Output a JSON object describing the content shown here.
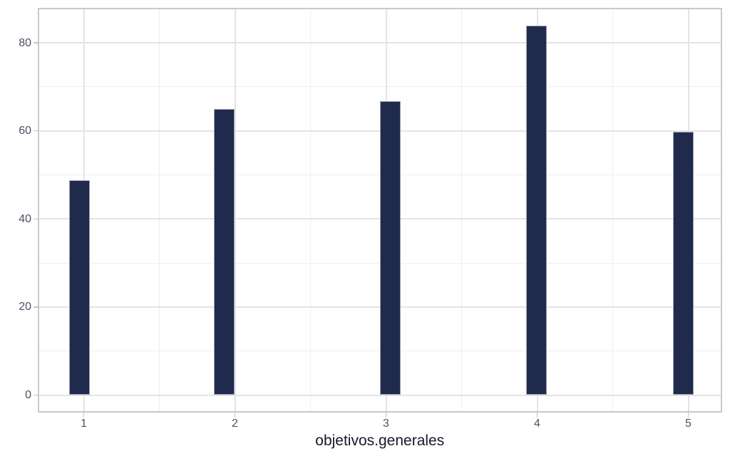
{
  "chart_data": {
    "type": "bar",
    "subtype": "histogram",
    "title": "",
    "xlabel": "objetivos.generales",
    "ylabel": "",
    "x": [
      1,
      2,
      3,
      4,
      5
    ],
    "values": [
      48.8,
      64.9,
      66.7,
      83.9,
      59.8
    ],
    "bin_centers": [
      0.972,
      1.93,
      3.03,
      3.995,
      4.965
    ],
    "bar_width_units": 0.138,
    "x_tick_labels": [
      "1",
      "2",
      "3",
      "4",
      "5"
    ],
    "x_ticks": [
      1,
      2,
      3,
      4,
      5
    ],
    "y_tick_labels": [
      "0",
      "20",
      "40",
      "60",
      "80"
    ],
    "y_ticks": [
      0,
      20,
      40,
      60,
      80
    ],
    "y_minor_gridlines": [
      10,
      30,
      50,
      70
    ],
    "x_minor_gridlines": [
      1.5,
      2.5,
      3.5,
      4.5
    ],
    "xlim": [
      0.696,
      5.243
    ],
    "ylim": [
      0,
      88.1
    ],
    "grid": "major+minor",
    "legend": "none",
    "colors": {
      "bar_fill": "#202a4d",
      "bar_edge": "#9aa2af",
      "grid_major": "#e4e4e6",
      "grid_minor": "#efeff1",
      "panel_border": "#c6c9cc",
      "tick_mark": "#c0c4c9",
      "tick_label": "#4c5163",
      "axis_title": "#15182a",
      "background": "#ffffff"
    }
  }
}
